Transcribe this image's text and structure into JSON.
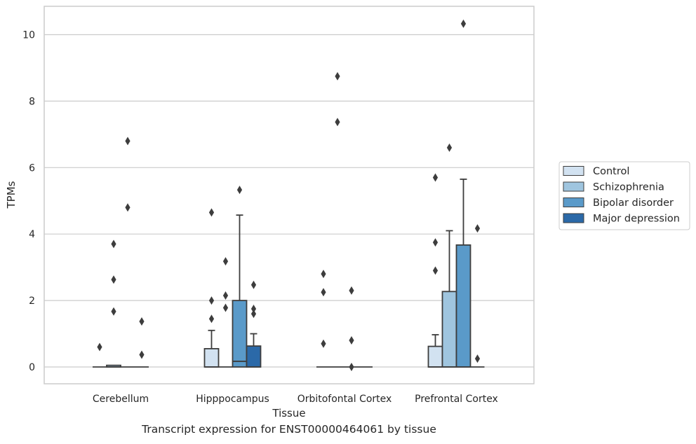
{
  "caption": "Transcript expression for ENST00000464061 by tissue",
  "chart_data": {
    "type": "boxplot",
    "xlabel": "Tissue",
    "ylabel": "TPMs",
    "ylim": [
      -0.5,
      10.8
    ],
    "yticks": [
      0,
      2,
      4,
      6,
      8,
      10
    ],
    "grid": "horizontal",
    "legend_position": "outside-right",
    "categories": [
      "Cerebellum",
      "Hipppocampus",
      "Orbitofontal Cortex",
      "Prefrontal Cortex"
    ],
    "series": [
      {
        "name": "Control",
        "color": "#d2e2f1",
        "boxes": [
          {
            "q1": 0,
            "median": 0,
            "q3": 0,
            "whisker_low": 0,
            "whisker_high": 0,
            "outliers": [
              0.6
            ]
          },
          {
            "q1": 0,
            "median": 0,
            "q3": 0.55,
            "whisker_low": 0,
            "whisker_high": 1.1,
            "outliers": [
              1.45,
              2.0,
              4.65
            ]
          },
          {
            "q1": 0,
            "median": 0,
            "q3": 0,
            "whisker_low": 0,
            "whisker_high": 0,
            "outliers": [
              0.7,
              2.25,
              2.8
            ]
          },
          {
            "q1": 0,
            "median": 0,
            "q3": 0.62,
            "whisker_low": 0,
            "whisker_high": 0.97,
            "outliers": [
              2.9,
              3.75,
              5.7
            ]
          }
        ]
      },
      {
        "name": "Schizophrenia",
        "color": "#9fc5df",
        "boxes": [
          {
            "q1": 0,
            "median": 0,
            "q3": 0.05,
            "whisker_low": 0,
            "whisker_high": 0.05,
            "outliers": [
              1.67,
              2.63,
              3.7
            ]
          },
          {
            "q1": 0,
            "median": 0,
            "q3": 0,
            "whisker_low": 0,
            "whisker_high": 0,
            "outliers": [
              1.78,
              2.15,
              3.18
            ]
          },
          {
            "q1": 0,
            "median": 0,
            "q3": 0,
            "whisker_low": 0,
            "whisker_high": 0,
            "outliers": [
              7.37,
              8.75
            ]
          },
          {
            "q1": 0,
            "median": 0,
            "q3": 2.27,
            "whisker_low": 0,
            "whisker_high": 4.1,
            "outliers": [
              6.6
            ]
          }
        ]
      },
      {
        "name": "Bipolar disorder",
        "color": "#5a9ac9",
        "boxes": [
          {
            "q1": 0,
            "median": 0,
            "q3": 0,
            "whisker_low": 0,
            "whisker_high": 0,
            "outliers": [
              4.8,
              6.8
            ]
          },
          {
            "q1": 0,
            "median": 0.17,
            "q3": 2.0,
            "whisker_low": 0,
            "whisker_high": 4.57,
            "outliers": [
              5.33
            ]
          },
          {
            "q1": 0,
            "median": 0,
            "q3": 0,
            "whisker_low": 0,
            "whisker_high": 0,
            "outliers": [
              0,
              0.8,
              2.3
            ]
          },
          {
            "q1": 0,
            "median": 0,
            "q3": 3.67,
            "whisker_low": 0,
            "whisker_high": 5.65,
            "outliers": [
              10.33
            ]
          }
        ]
      },
      {
        "name": "Major depression",
        "color": "#2b69a8",
        "boxes": [
          {
            "q1": 0,
            "median": 0,
            "q3": 0,
            "whisker_low": 0,
            "whisker_high": 0,
            "outliers": [
              0.37,
              1.37
            ]
          },
          {
            "q1": 0,
            "median": 0,
            "q3": 0.63,
            "whisker_low": 0,
            "whisker_high": 1.0,
            "outliers": [
              1.6,
              1.75,
              2.47
            ]
          },
          {
            "q1": 0,
            "median": 0,
            "q3": 0,
            "whisker_low": 0,
            "whisker_high": 0,
            "outliers": []
          },
          {
            "q1": 0,
            "median": 0,
            "q3": 0,
            "whisker_low": 0,
            "whisker_high": 0,
            "outliers": [
              0.25,
              4.17
            ]
          }
        ]
      }
    ]
  }
}
